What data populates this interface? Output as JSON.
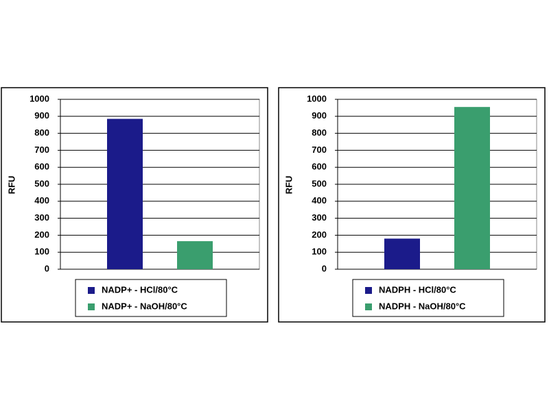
{
  "chart_data": [
    {
      "type": "bar",
      "ylabel": "RFU",
      "categories": [
        null
      ],
      "series": [
        {
          "name": "NADP+ - HCl/80°C",
          "color": "#1b1b8a",
          "values": [
            885
          ]
        },
        {
          "name": "NADP+ - NaOH/80°C",
          "color": "#3a9e6e",
          "values": [
            165
          ]
        }
      ],
      "ylim": [
        0,
        1000
      ],
      "yticks": [
        0,
        100,
        200,
        300,
        400,
        500,
        600,
        700,
        800,
        900,
        1000
      ],
      "grid": true
    },
    {
      "type": "bar",
      "ylabel": "RFU",
      "categories": [
        null
      ],
      "series": [
        {
          "name": "NADPH - HCl/80°C",
          "color": "#1b1b8a",
          "values": [
            180
          ]
        },
        {
          "name": "NADPH - NaOH/80°C",
          "color": "#3a9e6e",
          "values": [
            955
          ]
        }
      ],
      "ylim": [
        0,
        1000
      ],
      "yticks": [
        0,
        100,
        200,
        300,
        400,
        500,
        600,
        700,
        800,
        900,
        1000
      ],
      "grid": true
    }
  ]
}
